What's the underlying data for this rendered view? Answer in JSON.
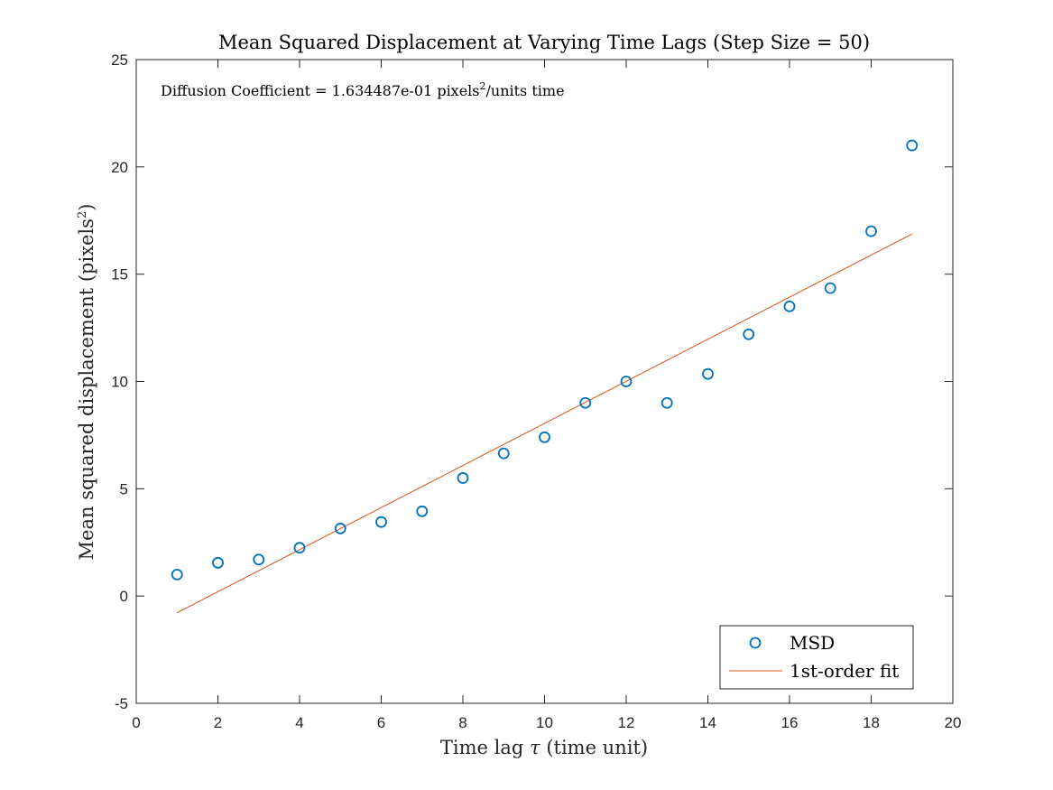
{
  "chart_data": {
    "type": "scatter",
    "title": "Mean Squared Displacement at Varying Time Lags (Step Size = 50)",
    "xlabel_pre": "Time lag ",
    "xlabel_symbol": "τ",
    "xlabel_post": " (time unit)",
    "ylabel_pre": "Mean squared displacement (pixels",
    "ylabel_sup": "2",
    "ylabel_post": ")",
    "xlim": [
      0,
      20
    ],
    "ylim": [
      -5,
      25
    ],
    "xticks": [
      0,
      2,
      4,
      6,
      8,
      10,
      12,
      14,
      16,
      18,
      20
    ],
    "yticks": [
      -5,
      0,
      5,
      10,
      15,
      20,
      25
    ],
    "xtick_labels": [
      "0",
      "2",
      "4",
      "6",
      "8",
      "10",
      "12",
      "14",
      "16",
      "18",
      "20"
    ],
    "ytick_labels": [
      "-5",
      "0",
      "5",
      "10",
      "15",
      "20",
      "25"
    ],
    "grid": false,
    "legend_position": "bottom-right",
    "annotation_pre": "Diffusion Coefficient = 1.634487e-01 pixels",
    "annotation_sup": "2",
    "annotation_post": "/units time",
    "series": [
      {
        "name": "MSD",
        "kind": "scatter",
        "color": "#0072BD",
        "x": [
          1,
          2,
          3,
          4,
          5,
          6,
          7,
          8,
          9,
          10,
          11,
          12,
          13,
          14,
          15,
          16,
          17,
          18,
          19
        ],
        "y": [
          1.0,
          1.55,
          1.7,
          2.25,
          3.15,
          3.45,
          3.95,
          5.5,
          6.65,
          7.4,
          9.0,
          10.0,
          9.0,
          10.35,
          12.2,
          13.5,
          14.35,
          17.0,
          21.0
        ]
      },
      {
        "name": "1st-order fit",
        "kind": "line",
        "color": "#D95319",
        "x": [
          1,
          19
        ],
        "y": [
          -0.78,
          16.87
        ]
      }
    ]
  }
}
